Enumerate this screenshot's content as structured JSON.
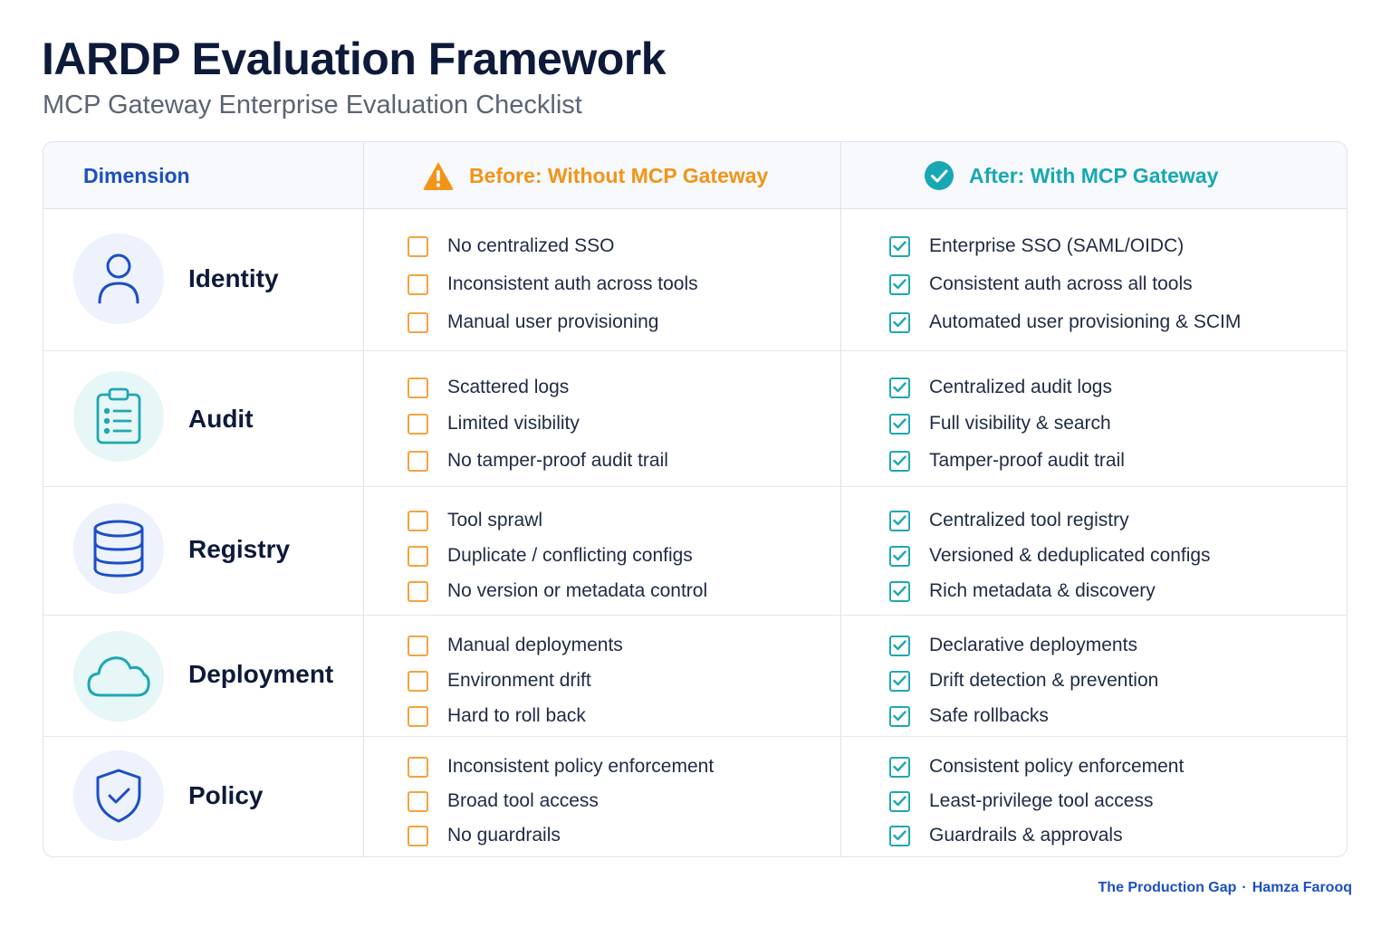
{
  "title": "IARDP Evaluation Framework",
  "subtitle": "MCP Gateway Enterprise Evaluation Checklist",
  "headers": {
    "dimension": "Dimension",
    "before": "Before: Without MCP Gateway",
    "after": "After: With MCP Gateway"
  },
  "colors": {
    "accent_blue": "#1a4fc4",
    "before_orange": "#f29418",
    "after_teal": "#17a8b4"
  },
  "rows": [
    {
      "dimension": "Identity",
      "icon": "user-icon",
      "before": [
        "No centralized SSO",
        "Inconsistent auth across tools",
        "Manual user provisioning"
      ],
      "after": [
        "Enterprise SSO (SAML/OIDC)",
        "Consistent auth across all tools",
        "Automated user provisioning & SCIM"
      ]
    },
    {
      "dimension": "Audit",
      "icon": "clipboard-icon",
      "before": [
        "Scattered logs",
        "Limited visibility",
        "No tamper-proof audit trail"
      ],
      "after": [
        "Centralized audit logs",
        "Full visibility & search",
        "Tamper-proof audit trail"
      ]
    },
    {
      "dimension": "Registry",
      "icon": "database-icon",
      "before": [
        "Tool sprawl",
        "Duplicate / conflicting configs",
        "No version or metadata control"
      ],
      "after": [
        "Centralized tool registry",
        "Versioned & deduplicated configs",
        "Rich metadata & discovery"
      ]
    },
    {
      "dimension": "Deployment",
      "icon": "cloud-icon",
      "before": [
        "Manual deployments",
        "Environment drift",
        "Hard to roll back"
      ],
      "after": [
        "Declarative deployments",
        "Drift detection & prevention",
        "Safe rollbacks"
      ]
    },
    {
      "dimension": "Policy",
      "icon": "shield-check-icon",
      "before": [
        "Inconsistent policy enforcement",
        "Broad tool access",
        "No guardrails"
      ],
      "after": [
        "Consistent policy enforcement",
        "Least-privilege tool access",
        "Guardrails & approvals"
      ]
    }
  ],
  "footer": {
    "publication": "The Production Gap",
    "separator": "·",
    "author": "Hamza Farooq"
  }
}
